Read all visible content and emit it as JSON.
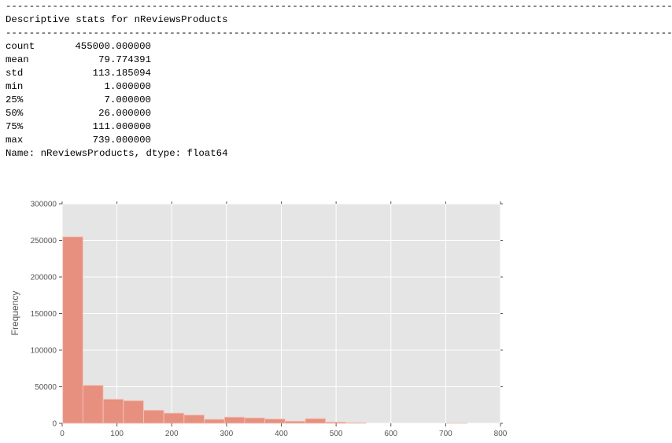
{
  "output": {
    "rule": "------------------------------------------------------------------------------------------------------------------------------",
    "title": "Descriptive stats for nReviewsProducts",
    "stats": [
      {
        "key": "count",
        "value": "455000.000000"
      },
      {
        "key": "mean",
        "value": "79.774391"
      },
      {
        "key": "std",
        "value": "113.185094"
      },
      {
        "key": "min",
        "value": "1.000000"
      },
      {
        "key": "25%",
        "value": "7.000000"
      },
      {
        "key": "50%",
        "value": "26.000000"
      },
      {
        "key": "75%",
        "value": "111.000000"
      },
      {
        "key": "max",
        "value": "739.000000"
      }
    ],
    "footer": "Name: nReviewsProducts, dtype: float64"
  },
  "chart_data": {
    "type": "bar",
    "title": "",
    "xlabel": "",
    "ylabel": "Frequency",
    "xlim": [
      0,
      800
    ],
    "ylim": [
      0,
      300000
    ],
    "xticks": [
      0,
      100,
      200,
      300,
      400,
      500,
      600,
      700,
      800
    ],
    "yticks": [
      0,
      50000,
      100000,
      150000,
      200000,
      250000,
      300000
    ],
    "bin_edges": [
      1,
      37.9,
      74.8,
      111.7,
      148.6,
      185.5,
      222.4,
      259.3,
      296.2,
      333.1,
      370,
      406.9,
      443.8,
      480.7,
      517.6,
      554.5,
      591.4,
      628.3,
      665.2,
      702.1,
      739
    ],
    "values": [
      255000,
      52000,
      33000,
      31000,
      18000,
      14000,
      11500,
      5500,
      8500,
      7500,
      6000,
      3000,
      6500,
      1800,
      1000,
      0,
      0,
      0,
      0,
      300
    ],
    "bar_color": "#e8907f",
    "bar_edge_color": "#f3c8bf",
    "plot_background": "#e5e5e5",
    "grid": true,
    "grid_color": "#ffffff"
  }
}
